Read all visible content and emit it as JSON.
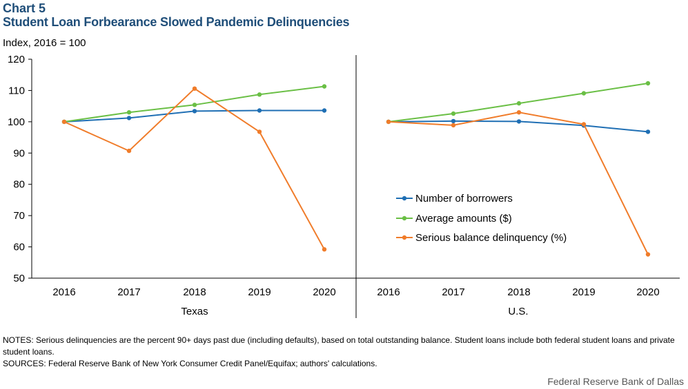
{
  "header": {
    "chart_number": "Chart 5",
    "title": "Student Loan Forbearance Slowed Pandemic Delinquencies",
    "y_unit": "Index,  2016 = 100"
  },
  "chart_data": {
    "type": "line",
    "ylim": [
      50,
      120
    ],
    "yticks": [
      50,
      60,
      70,
      80,
      90,
      100,
      110,
      120
    ],
    "categories": [
      "2016",
      "2017",
      "2018",
      "2019",
      "2020"
    ],
    "legend_placement": "center-right panel",
    "grid": false,
    "panels": [
      {
        "name": "Texas",
        "series": [
          {
            "name": "Number of borrowers",
            "color": "#1f6fb4",
            "values": [
              100,
              101.2,
              103.4,
              103.6,
              103.6
            ]
          },
          {
            "name": "Average amounts ($)",
            "color": "#6abf45",
            "values": [
              100,
              103,
              105.4,
              108.7,
              111.3
            ]
          },
          {
            "name": "Serious balance delinquency (%)",
            "color": "#f07c2a",
            "values": [
              100,
              90.7,
              110.6,
              96.8,
              59.2
            ]
          }
        ]
      },
      {
        "name": "U.S.",
        "series": [
          {
            "name": "Number of borrowers",
            "color": "#1f6fb4",
            "values": [
              100,
              100.2,
              100.1,
              98.8,
              96.8
            ]
          },
          {
            "name": "Average amounts ($)",
            "color": "#6abf45",
            "values": [
              100,
              102.6,
              105.9,
              109.1,
              112.3
            ]
          },
          {
            "name": "Serious balance delinquency (%)",
            "color": "#f07c2a",
            "values": [
              100,
              98.9,
              103,
              99.2,
              57.6
            ]
          }
        ]
      }
    ]
  },
  "legend": [
    {
      "label": "Number of borrowers",
      "color": "#1f6fb4"
    },
    {
      "label": "Average amounts ($)",
      "color": "#6abf45"
    },
    {
      "label": "Serious balance delinquency (%)",
      "color": "#f07c2a"
    }
  ],
  "notes": {
    "line1": "NOTES: Serious delinquencies are the percent 90+ days past due (including defaults), based on total outstanding balance. Student loans include both federal student loans and private  student loans.",
    "line2": "SOURCES: Federal Reserve  Bank of New York Consumer Credit Panel/Equifax;  authors' calculations."
  },
  "credit": "Federal Reserve Bank of Dallas"
}
